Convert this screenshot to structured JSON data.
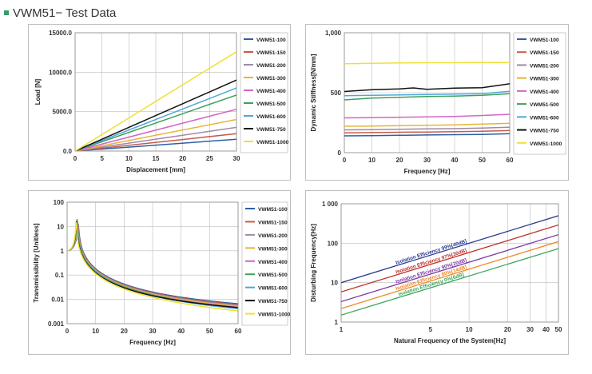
{
  "page": {
    "title": "VWM51− Test Data"
  },
  "colors": {
    "VWM51-100": "#2e5fa3",
    "VWM51-150": "#c65b4d",
    "VWM51-200": "#9e8aa6",
    "VWM51-300": "#e8b33a",
    "VWM51-400": "#d266c6",
    "VWM51-500": "#3f9f5b",
    "VWM51-600": "#4ea8d8",
    "VWM51-750": "#111111",
    "VWM51-1000": "#f0e034"
  },
  "chart_data": [
    {
      "id": "load",
      "type": "line",
      "title": "",
      "xlabel": "Displacement [mm]",
      "ylabel": "Load [N]",
      "xlim": [
        0,
        30
      ],
      "ylim": [
        0,
        15000
      ],
      "x_ticks": [
        0,
        5,
        10,
        15,
        20,
        25,
        30
      ],
      "y_ticks": [
        0,
        5000,
        10000,
        15000
      ],
      "y_tick_labels": [
        "0.0",
        "5000.0",
        "10000.0",
        "15000.0"
      ],
      "grid": true,
      "legend": "right",
      "series": [
        {
          "name": "VWM51-100",
          "x": [
            0,
            30
          ],
          "y": [
            0,
            1500
          ]
        },
        {
          "name": "VWM51-150",
          "x": [
            0,
            30
          ],
          "y": [
            0,
            2200
          ]
        },
        {
          "name": "VWM51-200",
          "x": [
            0,
            30
          ],
          "y": [
            0,
            3000
          ]
        },
        {
          "name": "VWM51-300",
          "x": [
            0,
            30
          ],
          "y": [
            0,
            4000
          ]
        },
        {
          "name": "VWM51-400",
          "x": [
            0,
            30
          ],
          "y": [
            0,
            5300
          ]
        },
        {
          "name": "VWM51-500",
          "x": [
            0,
            30
          ],
          "y": [
            0,
            7100
          ]
        },
        {
          "name": "VWM51-600",
          "x": [
            0,
            30
          ],
          "y": [
            0,
            8000
          ]
        },
        {
          "name": "VWM51-750",
          "x": [
            0,
            30
          ],
          "y": [
            0,
            9000
          ]
        },
        {
          "name": "VWM51-1000",
          "x": [
            0,
            30
          ],
          "y": [
            0,
            12600
          ]
        }
      ]
    },
    {
      "id": "stiffness",
      "type": "line",
      "title": "",
      "xlabel": "Frequency [Hz]",
      "ylabel": "Dynamic Stiffness[N/mm]",
      "xlim": [
        0,
        60
      ],
      "ylim": [
        0,
        1000
      ],
      "x_ticks": [
        0,
        10,
        20,
        30,
        40,
        50,
        60
      ],
      "y_ticks": [
        0,
        500,
        1000
      ],
      "y_tick_labels": [
        "0",
        "500",
        "1,000"
      ],
      "grid": true,
      "legend": "right",
      "series": [
        {
          "name": "VWM51-100",
          "x": [
            0,
            10,
            20,
            30,
            40,
            50,
            60
          ],
          "y": [
            140,
            142,
            145,
            147,
            150,
            152,
            158
          ]
        },
        {
          "name": "VWM51-150",
          "x": [
            0,
            10,
            20,
            30,
            40,
            50,
            60
          ],
          "y": [
            165,
            167,
            170,
            172,
            175,
            178,
            185
          ]
        },
        {
          "name": "VWM51-200",
          "x": [
            0,
            10,
            20,
            30,
            40,
            50,
            60
          ],
          "y": [
            190,
            192,
            195,
            198,
            200,
            205,
            212
          ]
        },
        {
          "name": "VWM51-300",
          "x": [
            0,
            10,
            20,
            30,
            40,
            50,
            60
          ],
          "y": [
            220,
            222,
            225,
            228,
            232,
            238,
            245
          ]
        },
        {
          "name": "VWM51-400",
          "x": [
            0,
            10,
            20,
            30,
            40,
            50,
            60
          ],
          "y": [
            290,
            292,
            295,
            298,
            302,
            310,
            320
          ]
        },
        {
          "name": "VWM51-500",
          "x": [
            0,
            10,
            20,
            30,
            40,
            50,
            60
          ],
          "y": [
            440,
            455,
            462,
            468,
            472,
            478,
            492
          ]
        },
        {
          "name": "VWM51-600",
          "x": [
            0,
            10,
            20,
            30,
            40,
            50,
            60
          ],
          "y": [
            475,
            478,
            482,
            485,
            488,
            492,
            512
          ]
        },
        {
          "name": "VWM51-750",
          "x": [
            0,
            10,
            20,
            25,
            30,
            40,
            50,
            60
          ],
          "y": [
            510,
            525,
            532,
            540,
            528,
            538,
            542,
            575
          ]
        },
        {
          "name": "VWM51-1000",
          "x": [
            0,
            10,
            20,
            30,
            40,
            50,
            60
          ],
          "y": [
            742,
            745,
            748,
            750,
            750,
            752,
            752
          ]
        }
      ]
    },
    {
      "id": "transmissibility",
      "type": "line",
      "title": "",
      "xlabel": "Frequency [Hz]",
      "ylabel": "Transmissibility  [Unitless]",
      "xlim": [
        0,
        60
      ],
      "ylim": [
        0.001,
        100
      ],
      "y_scale": "log",
      "x_ticks": [
        0,
        10,
        20,
        30,
        40,
        50,
        60
      ],
      "y_ticks": [
        0.001,
        0.01,
        0.1,
        1,
        10,
        100
      ],
      "y_tick_labels": [
        "0.001",
        "0.01",
        "0.1",
        "1",
        "10",
        "100"
      ],
      "grid": true,
      "legend": "right",
      "series": [
        {
          "name": "VWM51-100",
          "fn": 3.9,
          "Q": 13
        },
        {
          "name": "VWM51-150",
          "fn": 3.8,
          "Q": 14
        },
        {
          "name": "VWM51-200",
          "fn": 3.7,
          "Q": 15
        },
        {
          "name": "VWM51-300",
          "fn": 3.6,
          "Q": 16
        },
        {
          "name": "VWM51-400",
          "fn": 3.5,
          "Q": 18
        },
        {
          "name": "VWM51-500",
          "fn": 3.5,
          "Q": 20
        },
        {
          "name": "VWM51-600",
          "fn": 3.4,
          "Q": 22
        },
        {
          "name": "VWM51-750",
          "fn": 3.3,
          "Q": 16
        },
        {
          "name": "VWM51-1000",
          "fn": 3.2,
          "Q": 30
        }
      ]
    },
    {
      "id": "isolation",
      "type": "line",
      "title": "",
      "xlabel": "Natural Frequency of the System[Hz]",
      "ylabel": "Disturbing Frequency[Hz]",
      "x_scale": "log",
      "y_scale": "log",
      "xlim": [
        1,
        50
      ],
      "ylim": [
        1,
        1000
      ],
      "x_ticks": [
        1,
        5,
        10,
        20,
        30,
        40,
        50
      ],
      "y_ticks": [
        1,
        10,
        100,
        1000
      ],
      "y_tick_labels": [
        "1",
        "10",
        "100",
        "1 000"
      ],
      "grid": true,
      "legend": "none",
      "series": [
        {
          "name": "Isolation Efficiency 99%[40dB]",
          "x": [
            1,
            50
          ],
          "y": [
            10,
            500
          ],
          "color": "#2a3a8f"
        },
        {
          "name": "Isolation Efficiency 97%[30dB]",
          "x": [
            1,
            50
          ],
          "y": [
            5.8,
            290
          ],
          "color": "#c0302a"
        },
        {
          "name": "Isolation Efficiency 90%[20dB]",
          "x": [
            1,
            50
          ],
          "y": [
            3.3,
            165
          ],
          "color": "#7a3aa0"
        },
        {
          "name": "Isolation Efficiency 80%[14dB]",
          "x": [
            1,
            50
          ],
          "y": [
            2.2,
            110
          ],
          "color": "#f08a2a"
        },
        {
          "name": "Isolation Efficiency 0%[6dB]",
          "x": [
            1,
            50
          ],
          "y": [
            1.5,
            73
          ],
          "color": "#3aa65a"
        }
      ]
    }
  ]
}
